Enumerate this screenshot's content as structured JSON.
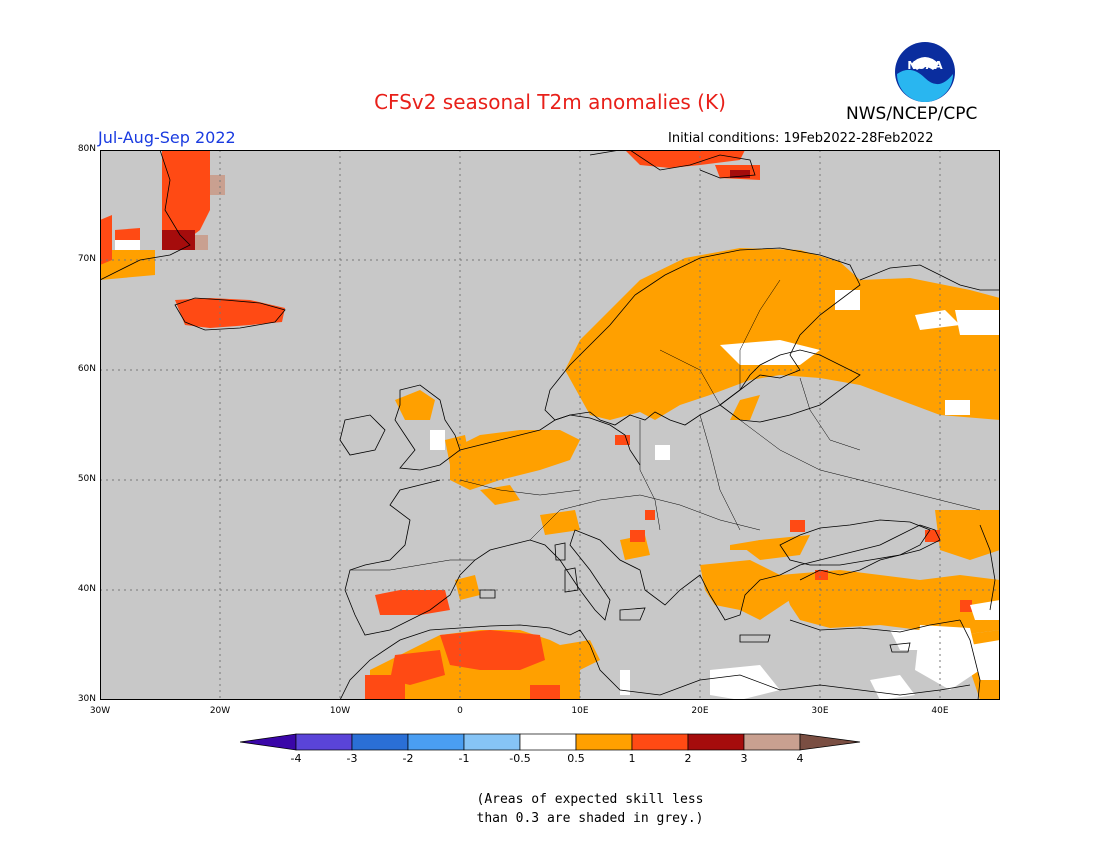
{
  "header": {
    "title": "CFSv2 seasonal T2m anomalies (K)",
    "agency": "NWS/NCEP/CPC",
    "logo_text": "NOAA",
    "season": "Jul-Aug-Sep 2022",
    "initial_conditions": "Initial conditions: 19Feb2022-28Feb2022"
  },
  "map": {
    "lat_labels": [
      "80N",
      "70N",
      "60N",
      "50N",
      "40N",
      "30N"
    ],
    "lon_labels": [
      "30W",
      "20W",
      "10W",
      "0",
      "10E",
      "20E",
      "30E",
      "40E"
    ],
    "lat_range": [
      30,
      80
    ],
    "lon_range": [
      -30,
      45
    ],
    "grid": true,
    "masked_color": "#c8c8c8"
  },
  "colorbar": {
    "labels": [
      "-4",
      "-3",
      "-2",
      "-1",
      "-0.5",
      "0.5",
      "1",
      "2",
      "3",
      "4"
    ],
    "colors": [
      "#3a06a8",
      "#5a44d8",
      "#2a6fd6",
      "#4a9ef2",
      "#86c4f6",
      "#ffffff",
      "#ffa000",
      "#ff4a14",
      "#a50c0c",
      "#c9a090",
      "#7a4e42"
    ]
  },
  "footnote": {
    "line1": "(Areas of expected skill less",
    "line2": "than 0.3 are shaded in grey.)"
  }
}
